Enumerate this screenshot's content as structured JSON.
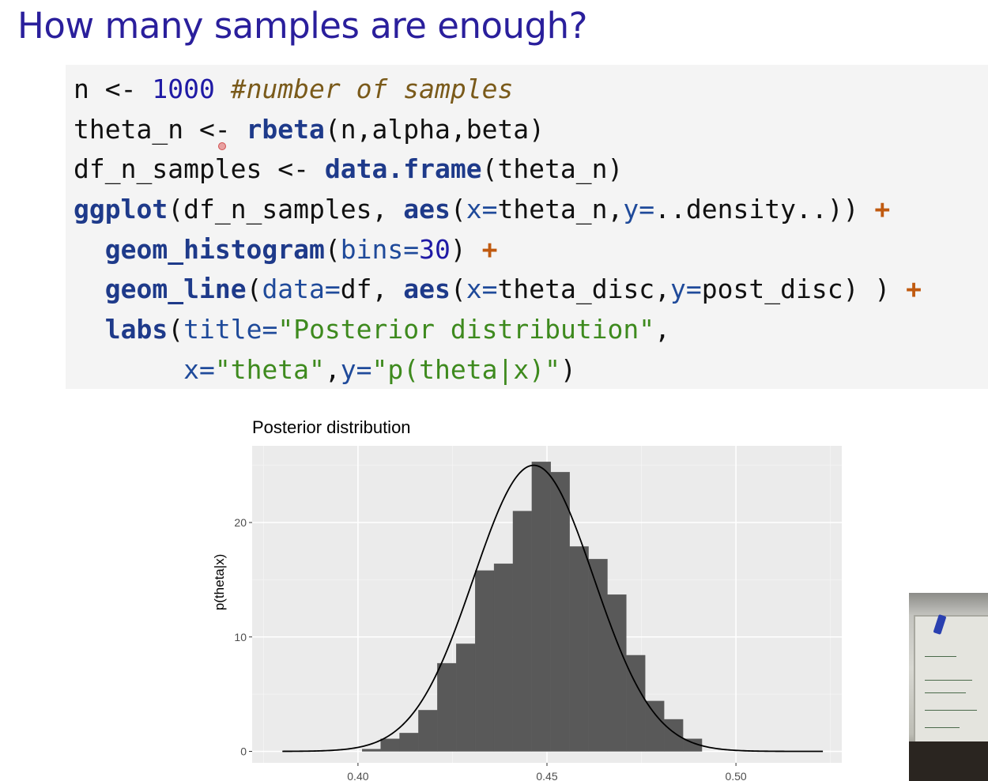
{
  "slide": {
    "title": "How many samples are enough?"
  },
  "code": {
    "lines": [
      [
        {
          "t": "n <- ",
          "c": "plain"
        },
        {
          "t": "1000",
          "c": "num"
        },
        {
          "t": " ",
          "c": "plain"
        },
        {
          "t": "#number of samples",
          "c": "cmt"
        }
      ],
      [
        {
          "t": "theta_n <- ",
          "c": "plain"
        },
        {
          "t": "rbeta",
          "c": "kw"
        },
        {
          "t": "(n,alpha,beta)",
          "c": "plain"
        }
      ],
      [
        {
          "t": "df_n_samples <- ",
          "c": "plain"
        },
        {
          "t": "data.frame",
          "c": "kw"
        },
        {
          "t": "(theta_n)",
          "c": "plain"
        }
      ],
      [
        {
          "t": "ggplot",
          "c": "kw"
        },
        {
          "t": "(df_n_samples, ",
          "c": "plain"
        },
        {
          "t": "aes",
          "c": "kw"
        },
        {
          "t": "(",
          "c": "plain"
        },
        {
          "t": "x=",
          "c": "arg"
        },
        {
          "t": "theta_n,",
          "c": "plain"
        },
        {
          "t": "y=",
          "c": "arg"
        },
        {
          "t": "..density..)) ",
          "c": "plain"
        },
        {
          "t": "+",
          "c": "op"
        }
      ],
      [
        {
          "t": "  ",
          "c": "plain"
        },
        {
          "t": "geom_histogram",
          "c": "kw"
        },
        {
          "t": "(",
          "c": "plain"
        },
        {
          "t": "bins=",
          "c": "arg"
        },
        {
          "t": "30",
          "c": "num"
        },
        {
          "t": ") ",
          "c": "plain"
        },
        {
          "t": "+",
          "c": "op"
        }
      ],
      [
        {
          "t": "  ",
          "c": "plain"
        },
        {
          "t": "geom_line",
          "c": "kw"
        },
        {
          "t": "(",
          "c": "plain"
        },
        {
          "t": "data=",
          "c": "arg"
        },
        {
          "t": "df, ",
          "c": "plain"
        },
        {
          "t": "aes",
          "c": "kw"
        },
        {
          "t": "(",
          "c": "plain"
        },
        {
          "t": "x=",
          "c": "arg"
        },
        {
          "t": "theta_disc,",
          "c": "plain"
        },
        {
          "t": "y=",
          "c": "arg"
        },
        {
          "t": "post_disc) ) ",
          "c": "plain"
        },
        {
          "t": "+",
          "c": "op"
        }
      ],
      [
        {
          "t": "  ",
          "c": "plain"
        },
        {
          "t": "labs",
          "c": "kw"
        },
        {
          "t": "(",
          "c": "plain"
        },
        {
          "t": "title=",
          "c": "arg"
        },
        {
          "t": "\"Posterior distribution\"",
          "c": "str"
        },
        {
          "t": ",",
          "c": "plain"
        }
      ],
      [
        {
          "t": "       ",
          "c": "plain"
        },
        {
          "t": "x=",
          "c": "arg"
        },
        {
          "t": "\"theta\"",
          "c": "str"
        },
        {
          "t": ",",
          "c": "plain"
        },
        {
          "t": "y=",
          "c": "arg"
        },
        {
          "t": "\"p(theta|x)\"",
          "c": "str"
        },
        {
          "t": ")",
          "c": "plain"
        }
      ]
    ]
  },
  "chart_data": {
    "type": "bar",
    "title": "Posterior distribution",
    "xlabel": "",
    "ylabel": "p(theta|x)",
    "xlim": [
      0.372,
      0.528
    ],
    "ylim": [
      -1.0,
      26.7
    ],
    "xticks": [
      0.4,
      0.45,
      0.5
    ],
    "xtick_labels": [
      "0.40",
      "0.45",
      "0.50"
    ],
    "yticks": [
      0,
      10,
      20
    ],
    "ytick_labels": [
      "0",
      "10",
      "20"
    ],
    "grid": true,
    "bins": [
      {
        "x0": 0.4011,
        "x1": 0.406,
        "y": 0.2
      },
      {
        "x0": 0.406,
        "x1": 0.411,
        "y": 1.1
      },
      {
        "x0": 0.411,
        "x1": 0.416,
        "y": 1.6
      },
      {
        "x0": 0.416,
        "x1": 0.421,
        "y": 3.6
      },
      {
        "x0": 0.421,
        "x1": 0.426,
        "y": 7.7
      },
      {
        "x0": 0.426,
        "x1": 0.431,
        "y": 9.4
      },
      {
        "x0": 0.431,
        "x1": 0.436,
        "y": 15.8
      },
      {
        "x0": 0.436,
        "x1": 0.441,
        "y": 16.4
      },
      {
        "x0": 0.441,
        "x1": 0.446,
        "y": 21.0
      },
      {
        "x0": 0.446,
        "x1": 0.451,
        "y": 25.3
      },
      {
        "x0": 0.451,
        "x1": 0.456,
        "y": 24.4
      },
      {
        "x0": 0.456,
        "x1": 0.461,
        "y": 17.9
      },
      {
        "x0": 0.461,
        "x1": 0.466,
        "y": 16.8
      },
      {
        "x0": 0.466,
        "x1": 0.471,
        "y": 13.7
      },
      {
        "x0": 0.471,
        "x1": 0.476,
        "y": 8.4
      },
      {
        "x0": 0.476,
        "x1": 0.481,
        "y": 4.4
      },
      {
        "x0": 0.481,
        "x1": 0.486,
        "y": 2.8
      },
      {
        "x0": 0.486,
        "x1": 0.491,
        "y": 1.1
      }
    ],
    "curve": {
      "x_start": 0.38,
      "x_end": 0.523,
      "mean": 0.4465,
      "sd": 0.0159,
      "peak": 25.0
    }
  },
  "webcam": {
    "icon": "webcam-thumbnail"
  }
}
